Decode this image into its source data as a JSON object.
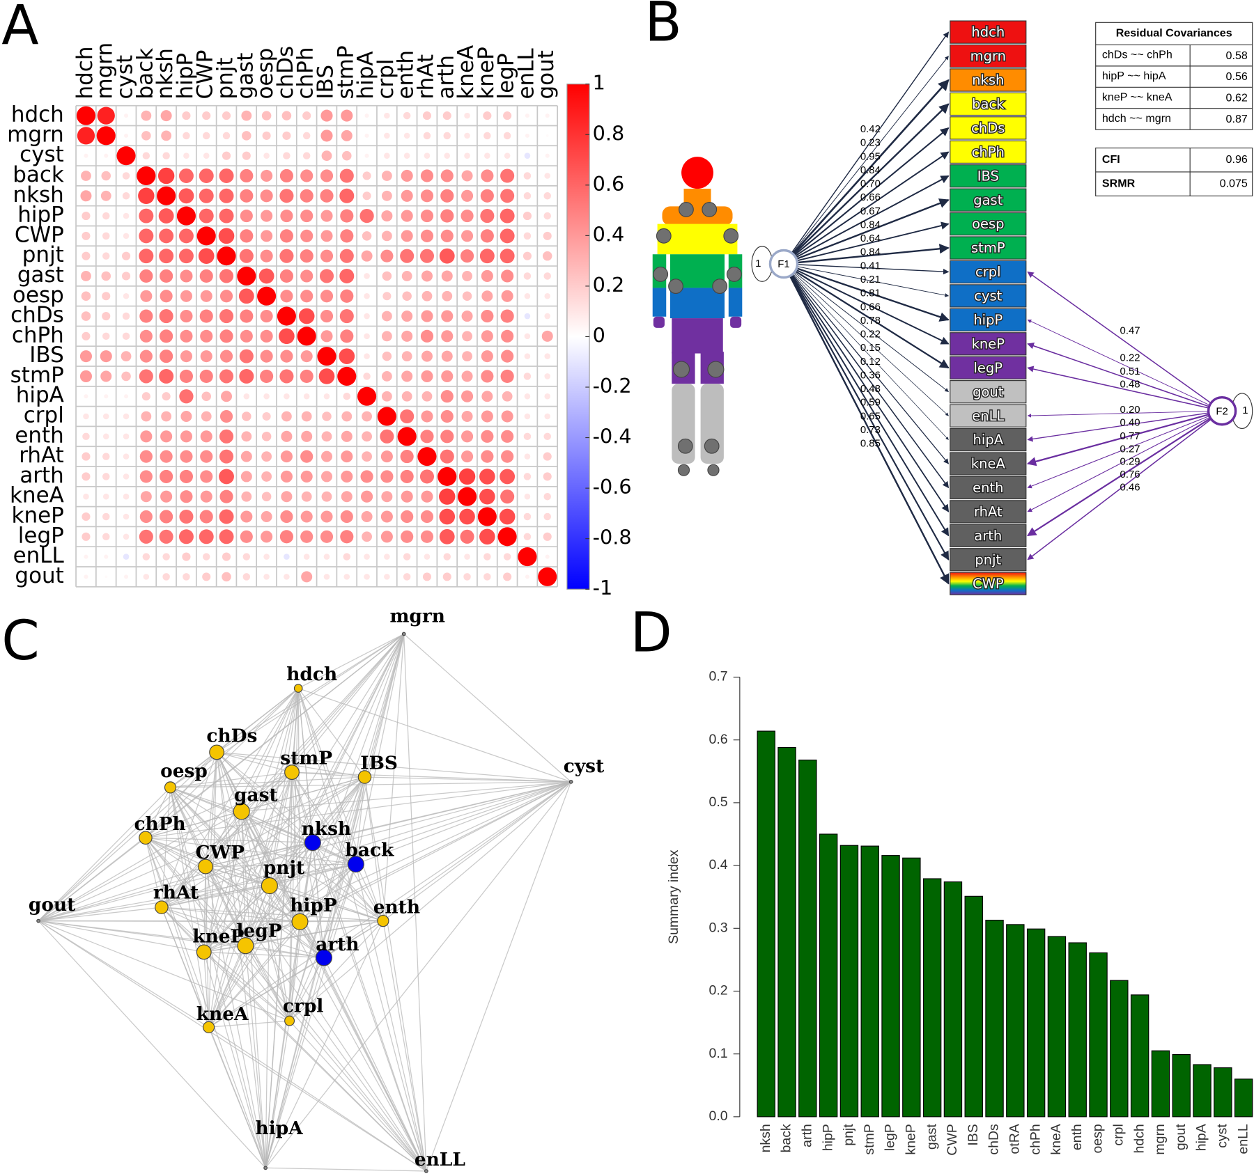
{
  "panel_labels": [
    "A",
    "B",
    "C",
    "D"
  ],
  "chart_data": [
    {
      "type": "corrplot",
      "labels": [
        "hdch",
        "mgrn",
        "cyst",
        "back",
        "nksh",
        "hipP",
        "CWP",
        "pnjt",
        "gast",
        "oesp",
        "chDs",
        "chPh",
        "IBS",
        "stmP",
        "hipA",
        "crpl",
        "enth",
        "rhAt",
        "arth",
        "kneA",
        "kneP",
        "legP",
        "enLL",
        "gout"
      ],
      "values": [
        [
          1
        ],
        [
          0.87,
          1
        ],
        [
          0.05,
          0.05,
          1
        ],
        [
          0.3,
          0.25,
          0.15,
          1
        ],
        [
          0.35,
          0.3,
          0.15,
          0.75,
          1
        ],
        [
          0.2,
          0.15,
          0.1,
          0.6,
          0.65,
          1
        ],
        [
          0.2,
          0.15,
          0.1,
          0.6,
          0.6,
          0.6,
          1
        ],
        [
          0.2,
          0.15,
          0.2,
          0.6,
          0.6,
          0.6,
          0.7,
          1
        ],
        [
          0.3,
          0.25,
          0.2,
          0.5,
          0.5,
          0.45,
          0.5,
          0.55,
          1
        ],
        [
          0.25,
          0.2,
          0.1,
          0.4,
          0.45,
          0.4,
          0.4,
          0.45,
          0.65,
          1
        ],
        [
          0.25,
          0.2,
          0.15,
          0.5,
          0.55,
          0.45,
          0.5,
          0.55,
          0.5,
          0.45,
          1
        ],
        [
          0.2,
          0.15,
          0.15,
          0.45,
          0.5,
          0.45,
          0.45,
          0.5,
          0.45,
          0.45,
          0.7,
          1
        ],
        [
          0.4,
          0.4,
          0.3,
          0.45,
          0.5,
          0.4,
          0.4,
          0.45,
          0.55,
          0.45,
          0.45,
          0.4,
          1
        ],
        [
          0.4,
          0.35,
          0.25,
          0.55,
          0.6,
          0.5,
          0.5,
          0.55,
          0.6,
          0.5,
          0.55,
          0.5,
          0.7,
          1
        ],
        [
          0.05,
          0.05,
          0.05,
          0.2,
          0.2,
          0.56,
          0.25,
          0.35,
          0.1,
          0.1,
          0.1,
          0.1,
          0.1,
          0.15,
          1
        ],
        [
          0.1,
          0.1,
          0.1,
          0.3,
          0.3,
          0.35,
          0.3,
          0.45,
          0.25,
          0.2,
          0.3,
          0.3,
          0.25,
          0.3,
          0.3,
          1
        ],
        [
          0.15,
          0.1,
          0.1,
          0.4,
          0.4,
          0.4,
          0.4,
          0.55,
          0.3,
          0.25,
          0.35,
          0.35,
          0.3,
          0.35,
          0.3,
          0.55,
          1
        ],
        [
          0.2,
          0.15,
          0.1,
          0.45,
          0.45,
          0.45,
          0.45,
          0.55,
          0.35,
          0.3,
          0.4,
          0.45,
          0.35,
          0.4,
          0.3,
          0.4,
          0.5,
          1
        ],
        [
          0.2,
          0.15,
          0.1,
          0.45,
          0.5,
          0.5,
          0.45,
          0.65,
          0.35,
          0.3,
          0.4,
          0.4,
          0.35,
          0.4,
          0.45,
          0.45,
          0.5,
          0.55,
          1
        ],
        [
          0.1,
          0.1,
          0.1,
          0.35,
          0.4,
          0.45,
          0.4,
          0.5,
          0.3,
          0.25,
          0.35,
          0.3,
          0.3,
          0.35,
          0.4,
          0.35,
          0.4,
          0.4,
          0.75,
          1
        ],
        [
          0.2,
          0.15,
          0.1,
          0.45,
          0.5,
          0.55,
          0.5,
          0.6,
          0.4,
          0.35,
          0.45,
          0.4,
          0.4,
          0.45,
          0.35,
          0.4,
          0.45,
          0.45,
          0.7,
          0.7,
          1
        ],
        [
          0.2,
          0.15,
          0.1,
          0.55,
          0.55,
          0.6,
          0.6,
          0.6,
          0.45,
          0.4,
          0.5,
          0.45,
          0.45,
          0.5,
          0.3,
          0.4,
          0.45,
          0.45,
          0.65,
          0.55,
          0.7,
          1
        ],
        [
          0.05,
          0.05,
          -0.1,
          0.15,
          0.15,
          0.2,
          0.15,
          0.2,
          0.15,
          0.1,
          -0.1,
          0.1,
          0.1,
          0.15,
          0.1,
          0.1,
          0.15,
          0.1,
          0.15,
          0.1,
          0.15,
          0.15,
          1
        ],
        [
          0.05,
          0.02,
          0.05,
          0.1,
          0.15,
          0.15,
          0.2,
          0.25,
          0.15,
          0.1,
          0.1,
          0.35,
          0.1,
          0.1,
          0.1,
          0.1,
          0.15,
          0.2,
          0.2,
          0.15,
          0.15,
          0.2,
          0.05,
          1
        ]
      ],
      "ylim": [
        -1,
        1
      ],
      "yticks": [
        1,
        0.8,
        0.6,
        0.4,
        0.2,
        0,
        -0.2,
        -0.4,
        -0.6,
        -0.8,
        -1
      ],
      "colors": [
        "#0000ff",
        "#ffffff",
        "#ff0000"
      ]
    },
    {
      "type": "sem",
      "indicators": [
        {
          "label": "hdch",
          "color": "#ee1111"
        },
        {
          "label": "mgrn",
          "color": "#ee1111"
        },
        {
          "label": "nksh",
          "color": "#ff8c00"
        },
        {
          "label": "back",
          "color": "#ffff00"
        },
        {
          "label": "chDs",
          "color": "#ffff00"
        },
        {
          "label": "chPh",
          "color": "#ffff00"
        },
        {
          "label": "IBS",
          "color": "#00b050"
        },
        {
          "label": "gast",
          "color": "#00b050"
        },
        {
          "label": "oesp",
          "color": "#00b050"
        },
        {
          "label": "stmP",
          "color": "#00b050"
        },
        {
          "label": "crpl",
          "color": "#0f6fc6"
        },
        {
          "label": "cyst",
          "color": "#0f6fc6"
        },
        {
          "label": "hipP",
          "color": "#0f6fc6"
        },
        {
          "label": "kneP",
          "color": "#7030a0"
        },
        {
          "label": "legP",
          "color": "#7030a0"
        },
        {
          "label": "gout",
          "color": "#c0c0c0"
        },
        {
          "label": "enLL",
          "color": "#c0c0c0"
        },
        {
          "label": "hipA",
          "color": "#606060"
        },
        {
          "label": "kneA",
          "color": "#606060"
        },
        {
          "label": "enth",
          "color": "#606060"
        },
        {
          "label": "rhAt",
          "color": "#606060"
        },
        {
          "label": "arth",
          "color": "#606060"
        },
        {
          "label": "pnjt",
          "color": "#606060"
        },
        {
          "label": "CWP"
        }
      ],
      "factors": [
        {
          "label": "F1",
          "variance": "1",
          "color": "#1f2a44",
          "loadings": [
            "0.42",
            "0.23",
            "0.95",
            "0.84",
            "0.70",
            "0.66",
            "0.67",
            "0.84",
            "0.64",
            "0.84",
            "0.41",
            "0.21",
            "0.81",
            "0.66",
            "0.78",
            "0.22",
            "0.15",
            "0.12",
            "0.36",
            "0.48",
            "0.59",
            "0.65",
            "0.73",
            "0.85"
          ]
        },
        {
          "label": "F2",
          "variance": "1",
          "color": "#6a2ea0",
          "loadings": [
            "0.47",
            "0.22",
            "0.51",
            "0.48",
            "0.20",
            "0.40",
            "0.77",
            "0.27",
            "0.29",
            "0.76",
            "0.46"
          ]
        }
      ],
      "residual_covariances": {
        "title": "Residual Covariances",
        "rows": [
          [
            "chDs ~~ chPh",
            "0.58"
          ],
          [
            "hipP ~~ hipA",
            "0.56"
          ],
          [
            "kneP ~~ kneA",
            "0.62"
          ],
          [
            "hdch ~~ mgrn",
            "0.87"
          ]
        ]
      },
      "fit": [
        [
          "CFI",
          "0.96"
        ],
        [
          "SRMR",
          "0.075"
        ]
      ]
    },
    {
      "type": "network",
      "nodes": [
        {
          "label": "mgrn",
          "color": "#888888"
        },
        {
          "label": "hdch",
          "color": "#f5c400"
        },
        {
          "label": "chDs",
          "color": "#f5c400"
        },
        {
          "label": "oesp",
          "color": "#f5c400"
        },
        {
          "label": "stmP",
          "color": "#f5c400"
        },
        {
          "label": "IBS",
          "color": "#f5c400"
        },
        {
          "label": "cyst",
          "color": "#888888"
        },
        {
          "label": "gast",
          "color": "#f5c400"
        },
        {
          "label": "chPh",
          "color": "#f5c400"
        },
        {
          "label": "nksh",
          "color": "#0000ee"
        },
        {
          "label": "back",
          "color": "#0000ee"
        },
        {
          "label": "CWP",
          "color": "#f5c400"
        },
        {
          "label": "pnjt",
          "color": "#f5c400"
        },
        {
          "label": "gout",
          "color": "#888888"
        },
        {
          "label": "rhAt",
          "color": "#f5c400"
        },
        {
          "label": "enth",
          "color": "#f5c400"
        },
        {
          "label": "hipP",
          "color": "#f5c400"
        },
        {
          "label": "kneP",
          "color": "#f5c400"
        },
        {
          "label": "legP",
          "color": "#f5c400"
        },
        {
          "label": "arth",
          "color": "#0000ee"
        },
        {
          "label": "kneA",
          "color": "#f5c400"
        },
        {
          "label": "crpl",
          "color": "#f5c400"
        },
        {
          "label": "hipA",
          "color": "#888888"
        },
        {
          "label": "enLL",
          "color": "#888888"
        }
      ]
    },
    {
      "type": "bar",
      "ylabel": "Summary index",
      "categories": [
        "nksh",
        "back",
        "arth",
        "hipP",
        "pnjt",
        "stmP",
        "legP",
        "kneP",
        "gast",
        "CWP",
        "IBS",
        "chDs",
        "otRA",
        "chPh",
        "kneA",
        "enth",
        "oesp",
        "crpl",
        "hdch",
        "mgrn",
        "gout",
        "hipA",
        "cyst",
        "enLL"
      ],
      "values": [
        0.614,
        0.588,
        0.568,
        0.45,
        0.432,
        0.431,
        0.416,
        0.412,
        0.379,
        0.374,
        0.351,
        0.313,
        0.306,
        0.299,
        0.287,
        0.277,
        0.261,
        0.217,
        0.194,
        0.105,
        0.099,
        0.083,
        0.078,
        0.06
      ],
      "color": "#006400",
      "ylim": [
        0,
        0.7
      ],
      "yticks": [
        {
          "value": 0,
          "label": "0.0"
        },
        0.1,
        0.2,
        0.3,
        0.4,
        0.5,
        0.6,
        0.7
      ]
    }
  ]
}
